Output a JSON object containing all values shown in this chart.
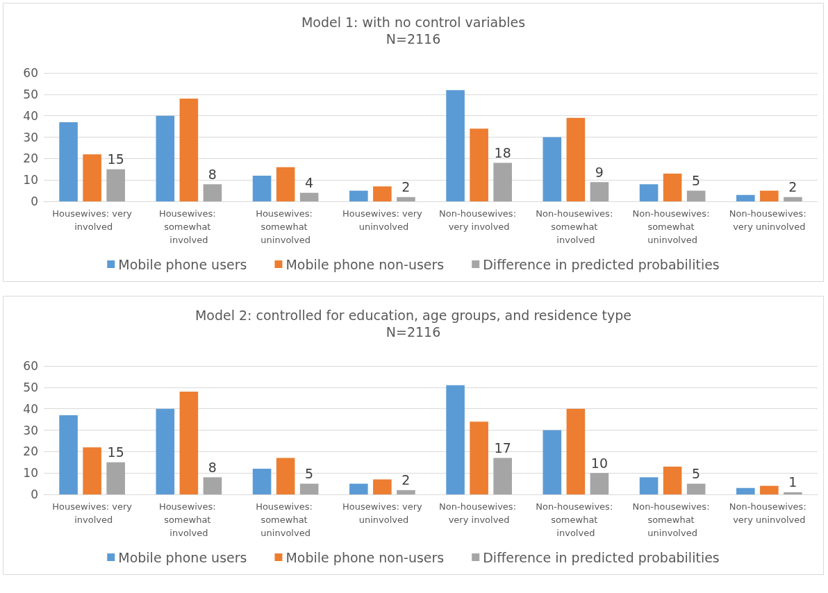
{
  "chart_data": [
    {
      "type": "bar",
      "title": "Model 1: with no control variables",
      "subtitle": "N=2116",
      "categories": [
        "Housewives: very involved",
        "Housewives: somewhat involved",
        "Housewives: somewhat uninvolved",
        "Housewives: very uninvolved",
        "Non-housewives: very involved",
        "Non-housewives: somewhat involved",
        "Non-housewives: somewhat uninvolved",
        "Non-housewives: very uninvolved"
      ],
      "series": [
        {
          "name": "Mobile phone users",
          "color": "#5b9bd5",
          "values": [
            37,
            40,
            12,
            5,
            52,
            30,
            8,
            3
          ]
        },
        {
          "name": "Mobile phone non-users",
          "color": "#ed7d31",
          "values": [
            22,
            48,
            16,
            7,
            34,
            39,
            13,
            5
          ]
        },
        {
          "name": "Difference in predicted probabilities",
          "color": "#a5a5a5",
          "values": [
            15,
            8,
            4,
            2,
            18,
            9,
            5,
            2
          ],
          "value_labels": [
            "15",
            "8",
            "4",
            "2",
            "18",
            "9",
            "5",
            "2"
          ]
        }
      ],
      "ylim": [
        0,
        60
      ],
      "yticks": [
        0,
        10,
        20,
        30,
        40,
        50,
        60
      ],
      "grid": "y",
      "legend": "bottom"
    },
    {
      "type": "bar",
      "title": "Model 2: controlled for education, age groups, and residence type",
      "subtitle": "N=2116",
      "categories": [
        "Housewives: very involved",
        "Housewives: somewhat involved",
        "Housewives: somewhat uninvolved",
        "Housewives: very uninvolved",
        "Non-housewives: very involved",
        "Non-housewives: somewhat involved",
        "Non-housewives: somewhat uninvolved",
        "Non-housewives: very uninvolved"
      ],
      "series": [
        {
          "name": "Mobile phone users",
          "color": "#5b9bd5",
          "values": [
            37,
            40,
            12,
            5,
            51,
            30,
            8,
            3
          ]
        },
        {
          "name": "Mobile phone non-users",
          "color": "#ed7d31",
          "values": [
            22,
            48,
            17,
            7,
            34,
            40,
            13,
            4
          ]
        },
        {
          "name": "Difference in predicted probabilities",
          "color": "#a5a5a5",
          "values": [
            15,
            8,
            5,
            2,
            17,
            10,
            5,
            1
          ],
          "value_labels": [
            "15",
            "8",
            "5",
            "2",
            "17",
            "10",
            "5",
            "1"
          ]
        }
      ],
      "ylim": [
        0,
        60
      ],
      "yticks": [
        0,
        10,
        20,
        30,
        40,
        50,
        60
      ],
      "grid": "y",
      "legend": "bottom"
    }
  ]
}
